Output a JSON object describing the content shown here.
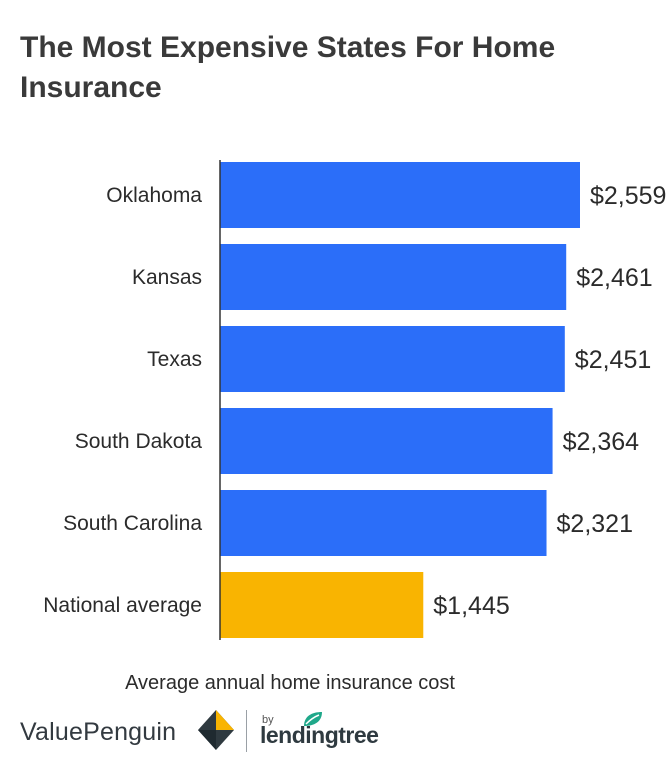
{
  "chart_data": {
    "type": "bar",
    "orientation": "horizontal",
    "title": "The Most Expensive States For Home Insurance",
    "xlabel": "Average annual home insurance cost",
    "ylabel": "",
    "categories": [
      "Oklahoma",
      "Kansas",
      "Texas",
      "South Dakota",
      "South Carolina",
      "National average"
    ],
    "values": [
      2559,
      2461,
      2451,
      2364,
      2321,
      1445
    ],
    "value_labels": [
      "$2,559",
      "$2,461",
      "$2,451",
      "$2,364",
      "$2,321",
      "$1,445"
    ],
    "xlim": [
      0,
      2559
    ],
    "grid": false,
    "legend": "none",
    "colors": {
      "bar": "#2b6ef9",
      "highlight": "#f9b401",
      "axis": "#333333"
    },
    "highlight_index": 5
  },
  "footer": {
    "brand": "ValuePenguin",
    "by": "by",
    "partner": "lendingtree"
  }
}
